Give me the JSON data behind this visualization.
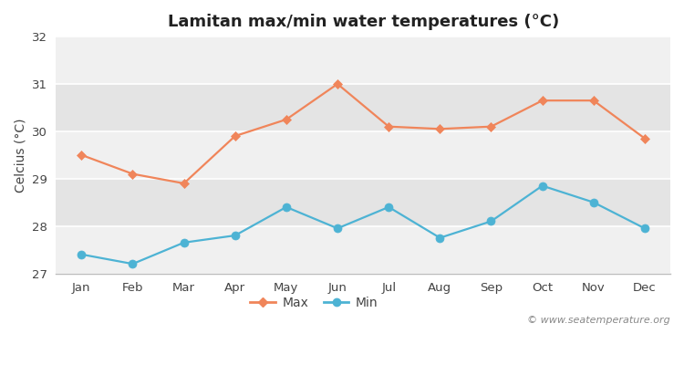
{
  "title": "Lamitan max/min water temperatures (°C)",
  "ylabel": "Celcius (°C)",
  "months": [
    "Jan",
    "Feb",
    "Mar",
    "Apr",
    "May",
    "Jun",
    "Jul",
    "Aug",
    "Sep",
    "Oct",
    "Nov",
    "Dec"
  ],
  "max_temps": [
    29.5,
    29.1,
    28.9,
    29.9,
    30.25,
    31.0,
    30.1,
    30.05,
    30.1,
    30.65,
    30.65,
    29.85
  ],
  "min_temps": [
    27.4,
    27.2,
    27.65,
    27.8,
    28.4,
    27.95,
    28.4,
    27.75,
    28.1,
    28.85,
    28.5,
    27.95
  ],
  "max_color": "#f0855a",
  "min_color": "#4db3d4",
  "ylim": [
    27,
    32
  ],
  "yticks": [
    27,
    28,
    29,
    30,
    31,
    32
  ],
  "background_color": "#ffffff",
  "plot_bg_light": "#f0f0f0",
  "plot_bg_dark": "#e4e4e4",
  "watermark": "© www.seatemperature.org",
  "title_fontsize": 13,
  "label_fontsize": 10,
  "tick_fontsize": 9.5,
  "watermark_fontsize": 8
}
